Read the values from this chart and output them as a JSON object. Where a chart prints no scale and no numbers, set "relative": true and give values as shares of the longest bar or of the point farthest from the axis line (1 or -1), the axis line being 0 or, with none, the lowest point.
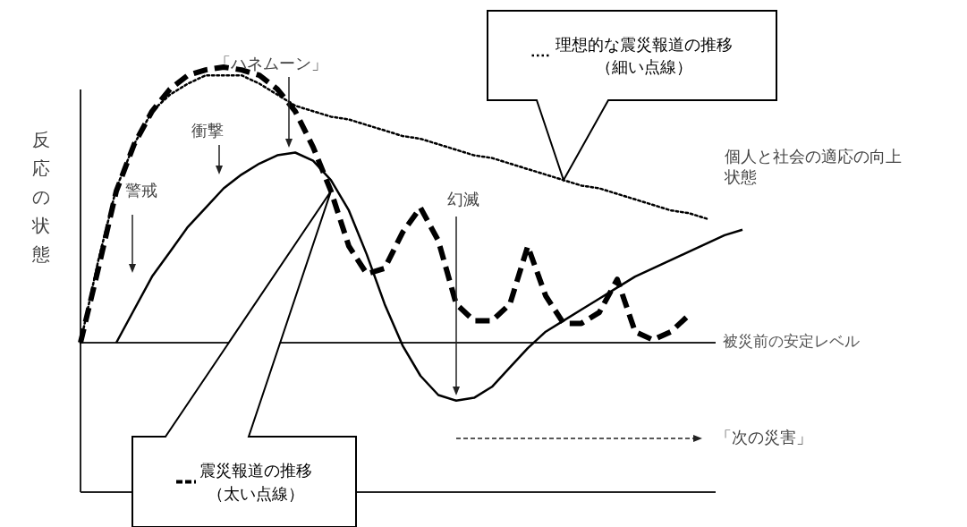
{
  "chart_data": {
    "type": "line",
    "relative": true,
    "legend": "bottom right",
    "ylabel": "反応の状態",
    "categories": [
      null,
      null,
      null,
      null,
      null,
      null,
      null,
      null,
      null,
      null,
      null,
      null,
      null,
      null,
      null,
      null,
      null,
      null,
      null,
      null,
      null,
      null,
      null,
      null,
      null,
      null,
      null,
      null,
      null,
      null,
      null,
      null,
      null,
      null,
      null,
      null,
      null,
      null
    ],
    "series": [
      {
        "color": "#000000",
        "line_style": "solid",
        "values": [
          null,
          null,
          0,
          0.12,
          0.24,
          0.33,
          0.42,
          0.49,
          0.56,
          0.61,
          0.65,
          0.68,
          0.69,
          0.66,
          0.59,
          0.48,
          0.32,
          0.14,
          -0.01,
          -0.12,
          -0.19,
          -0.21,
          -0.2,
          -0.16,
          -0.09,
          -0.02,
          0.04,
          0.08,
          0.12,
          0.16,
          0.2,
          0.24,
          0.27,
          0.3,
          0.33,
          0.36,
          0.39,
          0.41
        ]
      },
      {
        "name": "震災報道の推移（太い点線）",
        "color": "#000000",
        "line_style": "dashed",
        "values": [
          0,
          0.27,
          0.55,
          0.72,
          0.84,
          0.92,
          0.97,
          0.99,
          1,
          0.99,
          0.97,
          0.92,
          0.84,
          0.71,
          0.55,
          0.35,
          0.25,
          0.27,
          0.4,
          0.49,
          0.37,
          0.14,
          0.08,
          0.08,
          0.14,
          0.35,
          0.17,
          0.07,
          0.07,
          0.11,
          0.23,
          0.04,
          0.01,
          0.04,
          0.1,
          null,
          null,
          null
        ]
      },
      {
        "name": "理想的な震災報道の推移（細い点線）",
        "color": "#000000",
        "line_style": "dotted",
        "values": [
          0,
          0.3,
          0.56,
          0.72,
          0.84,
          0.9,
          0.94,
          0.97,
          0.97,
          0.97,
          0.94,
          0.9,
          0.86,
          0.84,
          0.82,
          0.81,
          0.79,
          0.77,
          0.75,
          0.74,
          0.72,
          0.7,
          0.68,
          0.67,
          0.65,
          0.63,
          0.61,
          0.59,
          0.57,
          0.56,
          0.54,
          0.52,
          0.5,
          0.48,
          0.47,
          0.45,
          null,
          null
        ]
      }
    ],
    "ref_lines": [
      {
        "axis": "y",
        "value": 0,
        "label": "被災前の安定レベル"
      }
    ],
    "annotations": [
      "警戒",
      "衝撃",
      "「ハネムーン」",
      "幻滅",
      "個人と社会の適応の向上状態",
      "「次の災害」"
    ]
  }
}
